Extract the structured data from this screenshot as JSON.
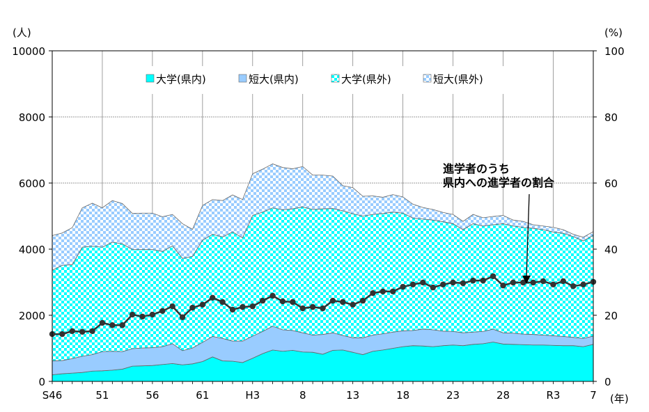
{
  "chart_data": {
    "type": "area",
    "stacked": true,
    "categories": [
      "S46",
      "S47",
      "S48",
      "S49",
      "S50",
      "S51",
      "S52",
      "S53",
      "S54",
      "S55",
      "S56",
      "S57",
      "S58",
      "S59",
      "S60",
      "S61",
      "S62",
      "S63",
      "H1",
      "H2",
      "H3",
      "H4",
      "H5",
      "H6",
      "H7",
      "H8",
      "H9",
      "H10",
      "H11",
      "H12",
      "H13",
      "H14",
      "H15",
      "H16",
      "H17",
      "H18",
      "H19",
      "H20",
      "H21",
      "H22",
      "H23",
      "H24",
      "H25",
      "H26",
      "H27",
      "H28",
      "H29",
      "H30",
      "R1",
      "R2",
      "R3",
      "R4",
      "R5",
      "R6",
      "R7"
    ],
    "x_tick_labels": [
      "S46",
      "51",
      "56",
      "61",
      "H3",
      "8",
      "13",
      "18",
      "23",
      "28",
      "R3",
      "7"
    ],
    "x_tick_indices": [
      0,
      5,
      10,
      15,
      20,
      25,
      30,
      35,
      40,
      45,
      50,
      54
    ],
    "xlabel": "(年)",
    "ylabel_left": "(人)",
    "ylabel_right": "(%)",
    "ylim_left": [
      0,
      10000
    ],
    "yticks_left": [
      "0",
      "2000",
      "4000",
      "6000",
      "8000",
      "10000"
    ],
    "ylim_right": [
      0,
      100
    ],
    "yticks_right": [
      "0",
      "20",
      "40",
      "60",
      "80",
      "100"
    ],
    "grid": true,
    "legend_position": "top-center",
    "series": [
      {
        "name": "大学(県内)",
        "color": "#00ffff",
        "fill": "solid",
        "values": [
          200,
          230,
          250,
          270,
          310,
          320,
          340,
          370,
          460,
          470,
          480,
          510,
          540,
          500,
          530,
          600,
          740,
          620,
          610,
          570,
          700,
          840,
          950,
          910,
          940,
          890,
          880,
          820,
          940,
          950,
          880,
          810,
          910,
          950,
          1000,
          1050,
          1080,
          1070,
          1050,
          1080,
          1100,
          1080,
          1120,
          1140,
          1190,
          1130,
          1120,
          1110,
          1100,
          1100,
          1090,
          1080,
          1080,
          1050,
          1120
        ]
      },
      {
        "name": "短大(県内)",
        "color": "#99ccff",
        "fill": "solid",
        "values": [
          420,
          400,
          440,
          490,
          500,
          580,
          570,
          530,
          530,
          540,
          540,
          540,
          600,
          430,
          480,
          580,
          620,
          680,
          610,
          650,
          670,
          670,
          720,
          650,
          600,
          580,
          520,
          600,
          530,
          440,
          440,
          510,
          490,
          490,
          490,
          480,
          460,
          510,
          510,
          440,
          410,
          390,
          370,
          370,
          390,
          340,
          340,
          320,
          320,
          300,
          290,
          280,
          250,
          250,
          250
        ]
      },
      {
        "name": "大学(県外)",
        "color": "#00ffff",
        "fill": "checker",
        "values": [
          2740,
          2880,
          2840,
          3300,
          3280,
          3160,
          3300,
          3260,
          3000,
          2980,
          2970,
          2880,
          2960,
          2790,
          2770,
          3090,
          3090,
          3070,
          3300,
          3120,
          3650,
          3610,
          3580,
          3630,
          3680,
          3810,
          3800,
          3800,
          3760,
          3770,
          3750,
          3680,
          3650,
          3640,
          3630,
          3560,
          3400,
          3330,
          3320,
          3310,
          3260,
          3120,
          3280,
          3190,
          3160,
          3300,
          3240,
          3230,
          3210,
          3190,
          3140,
          3120,
          3050,
          2950,
          3050
        ]
      },
      {
        "name": "短大(県外)",
        "color": "#99ccff",
        "fill": "checker",
        "values": [
          1050,
          980,
          1120,
          1190,
          1300,
          1190,
          1260,
          1220,
          1090,
          1100,
          1100,
          1050,
          950,
          1050,
          820,
          1050,
          1050,
          1100,
          1120,
          1160,
          1260,
          1300,
          1330,
          1280,
          1210,
          1220,
          1040,
          1020,
          980,
          760,
          790,
          600,
          560,
          490,
          530,
          490,
          420,
          350,
          320,
          280,
          280,
          250,
          280,
          250,
          250,
          250,
          180,
          180,
          110,
          110,
          140,
          110,
          70,
          110,
          110
        ]
      }
    ],
    "line_series": {
      "axis": "right",
      "color": "#333333",
      "values": [
        14.3,
        14.3,
        15.2,
        15.0,
        15.2,
        17.7,
        17.0,
        17.0,
        20.2,
        19.6,
        20.2,
        21.3,
        22.7,
        19.4,
        22.3,
        23.2,
        25.3,
        24.0,
        21.7,
        22.5,
        22.7,
        24.4,
        25.9,
        24.2,
        24.0,
        22.1,
        22.5,
        22.1,
        24.4,
        24.0,
        23.2,
        24.4,
        26.7,
        27.2,
        27.2,
        28.6,
        29.3,
        29.9,
        28.4,
        29.3,
        29.9,
        29.7,
        30.5,
        30.5,
        31.8,
        29.0,
        29.9,
        29.9,
        29.9,
        30.3,
        29.3,
        30.3,
        28.8,
        29.3,
        30.1
      ]
    },
    "annotation": {
      "line1": "進学者のうち",
      "line2": "県内への進学者の割合"
    }
  }
}
